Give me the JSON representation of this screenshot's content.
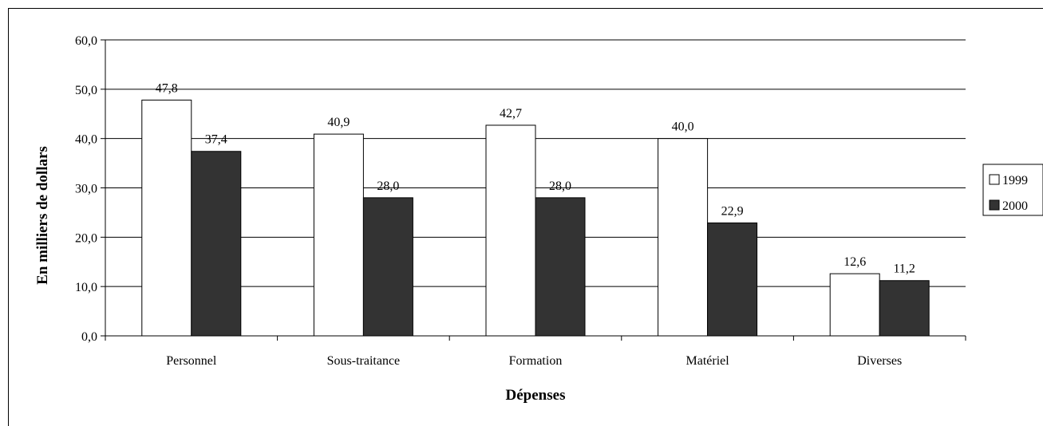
{
  "chart_data": {
    "type": "bar",
    "categories": [
      "Personnel",
      "Sous-traitance",
      "Formation",
      "Matériel",
      "Diverses"
    ],
    "series": [
      {
        "name": "1999",
        "values": [
          47.8,
          40.9,
          42.7,
          40.0,
          12.6
        ],
        "color": "#ffffff",
        "labels": [
          "47,8",
          "40,9",
          "42,7",
          "40,0",
          "12,6"
        ]
      },
      {
        "name": "2000",
        "values": [
          37.4,
          28.0,
          28.0,
          22.9,
          11.2
        ],
        "color": "#333333",
        "labels": [
          "37,4",
          "28,0",
          "28,0",
          "22,9",
          "11,2"
        ]
      }
    ],
    "title": "",
    "xlabel": "Dépenses",
    "ylabel": "En milliers de dollars",
    "ylim": [
      0,
      60
    ],
    "yticks": [
      0,
      10,
      20,
      30,
      40,
      50,
      60
    ],
    "ytick_labels": [
      "0,0",
      "10,0",
      "20,0",
      "30,0",
      "40,0",
      "50,0",
      "60,0"
    ],
    "grid": true,
    "legend_position": "right"
  }
}
